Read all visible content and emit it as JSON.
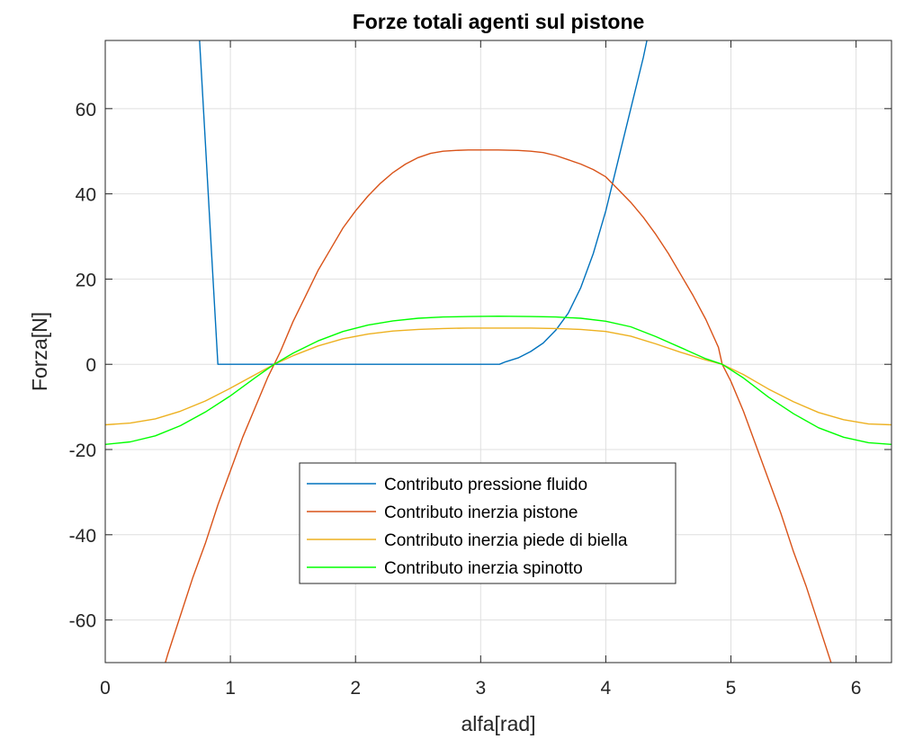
{
  "chart_data": {
    "type": "line",
    "title": "Forze totali agenti sul pistone",
    "xlabel": "alfa[rad]",
    "ylabel": "Forza[N]",
    "xlim": [
      0,
      6.2832
    ],
    "ylim": [
      -70,
      76
    ],
    "grid": true,
    "legend_position": "bottom-center",
    "xticks": [
      {
        "value": 0,
        "label": "0"
      },
      {
        "value": 1,
        "label": "1"
      },
      {
        "value": 2,
        "label": "2"
      },
      {
        "value": 3,
        "label": "3"
      },
      {
        "value": 4,
        "label": "4"
      },
      {
        "value": 5,
        "label": "5"
      },
      {
        "value": 6,
        "label": "6"
      }
    ],
    "yticks": [
      {
        "value": -60,
        "label": "-60"
      },
      {
        "value": -40,
        "label": "-40"
      },
      {
        "value": -20,
        "label": "-20"
      },
      {
        "value": 0,
        "label": "0"
      },
      {
        "value": 20,
        "label": "20"
      },
      {
        "value": 40,
        "label": "40"
      },
      {
        "value": 60,
        "label": "60"
      }
    ],
    "series": [
      {
        "name": "Contributo pressione fluido",
        "color": "#0072BD",
        "x": [
          0.75,
          0.8,
          0.85,
          0.9,
          1.0,
          1.5,
          2.0,
          2.5,
          3.0,
          3.15,
          3.2,
          3.3,
          3.4,
          3.5,
          3.6,
          3.7,
          3.8,
          3.9,
          4.0,
          4.1,
          4.2,
          4.3,
          4.35,
          4.4
        ],
        "y": [
          78,
          52,
          26,
          0,
          0,
          0,
          0,
          0,
          0,
          0,
          0.6,
          1.5,
          3,
          5,
          8,
          12,
          18,
          26,
          36,
          48,
          60,
          72,
          79,
          86
        ]
      },
      {
        "name": "Contributo inerzia pistone",
        "color": "#D95319",
        "x": [
          0.4,
          0.5,
          0.6,
          0.7,
          0.8,
          0.9,
          1.0,
          1.1,
          1.2,
          1.3,
          1.35,
          1.4,
          1.5,
          1.6,
          1.7,
          1.8,
          1.9,
          2.0,
          2.1,
          2.2,
          2.3,
          2.4,
          2.5,
          2.6,
          2.7,
          2.8,
          2.9,
          3.0,
          3.14,
          3.3,
          3.4,
          3.5,
          3.6,
          3.7,
          3.8,
          3.9,
          4.0,
          4.1,
          4.2,
          4.3,
          4.4,
          4.5,
          4.6,
          4.7,
          4.8,
          4.9,
          4.93,
          5.0,
          5.1,
          5.2,
          5.3,
          5.4,
          5.5,
          5.6,
          5.7,
          5.8,
          5.9
        ],
        "y": [
          -78,
          -68,
          -59,
          -50,
          -42,
          -33,
          -25,
          -17,
          -10,
          -3,
          0,
          3,
          10,
          16,
          22,
          27,
          32,
          36,
          39.5,
          42.5,
          45,
          47,
          48.5,
          49.5,
          50,
          50.2,
          50.3,
          50.3,
          50.3,
          50.2,
          50,
          49.7,
          49,
          48,
          47,
          45.7,
          44,
          41,
          38,
          34.5,
          30.5,
          26,
          21,
          16,
          10.5,
          4,
          0,
          -4,
          -11,
          -19,
          -27,
          -35,
          -44,
          -52,
          -61,
          -70,
          -78
        ]
      },
      {
        "name": "Contributo inerzia piede di biella",
        "color": "#EDB120",
        "x": [
          0,
          0.2,
          0.4,
          0.6,
          0.8,
          1.0,
          1.2,
          1.35,
          1.5,
          1.7,
          1.9,
          2.1,
          2.3,
          2.5,
          2.7,
          2.9,
          3.14,
          3.4,
          3.6,
          3.8,
          4.0,
          4.2,
          4.4,
          4.6,
          4.8,
          4.93,
          5.1,
          5.3,
          5.5,
          5.7,
          5.9,
          6.1,
          6.2832
        ],
        "y": [
          -14.2,
          -13.8,
          -12.8,
          -11,
          -8.6,
          -5.6,
          -2.4,
          0,
          2,
          4.3,
          6,
          7.1,
          7.8,
          8.2,
          8.4,
          8.5,
          8.5,
          8.5,
          8.4,
          8.2,
          7.7,
          6.6,
          4.8,
          2.8,
          1,
          0,
          -2.4,
          -5.8,
          -8.8,
          -11.3,
          -13,
          -14,
          -14.2
        ]
      },
      {
        "name": "Contributo inerzia spinotto",
        "color": "#00FF00",
        "x": [
          0,
          0.2,
          0.4,
          0.6,
          0.8,
          1.0,
          1.2,
          1.35,
          1.5,
          1.7,
          1.9,
          2.1,
          2.3,
          2.5,
          2.7,
          2.9,
          3.14,
          3.4,
          3.6,
          3.8,
          4.0,
          4.2,
          4.4,
          4.6,
          4.8,
          4.93,
          5.1,
          5.3,
          5.5,
          5.7,
          5.9,
          6.1,
          6.2832
        ],
        "y": [
          -18.8,
          -18.2,
          -16.8,
          -14.4,
          -11.2,
          -7.4,
          -3.1,
          0,
          2.6,
          5.5,
          7.7,
          9.2,
          10.2,
          10.8,
          11.1,
          11.2,
          11.3,
          11.2,
          11.1,
          10.8,
          10.1,
          8.8,
          6.5,
          3.9,
          1.3,
          0,
          -3.2,
          -7.7,
          -11.6,
          -14.9,
          -17.1,
          -18.4,
          -18.8
        ]
      }
    ]
  }
}
